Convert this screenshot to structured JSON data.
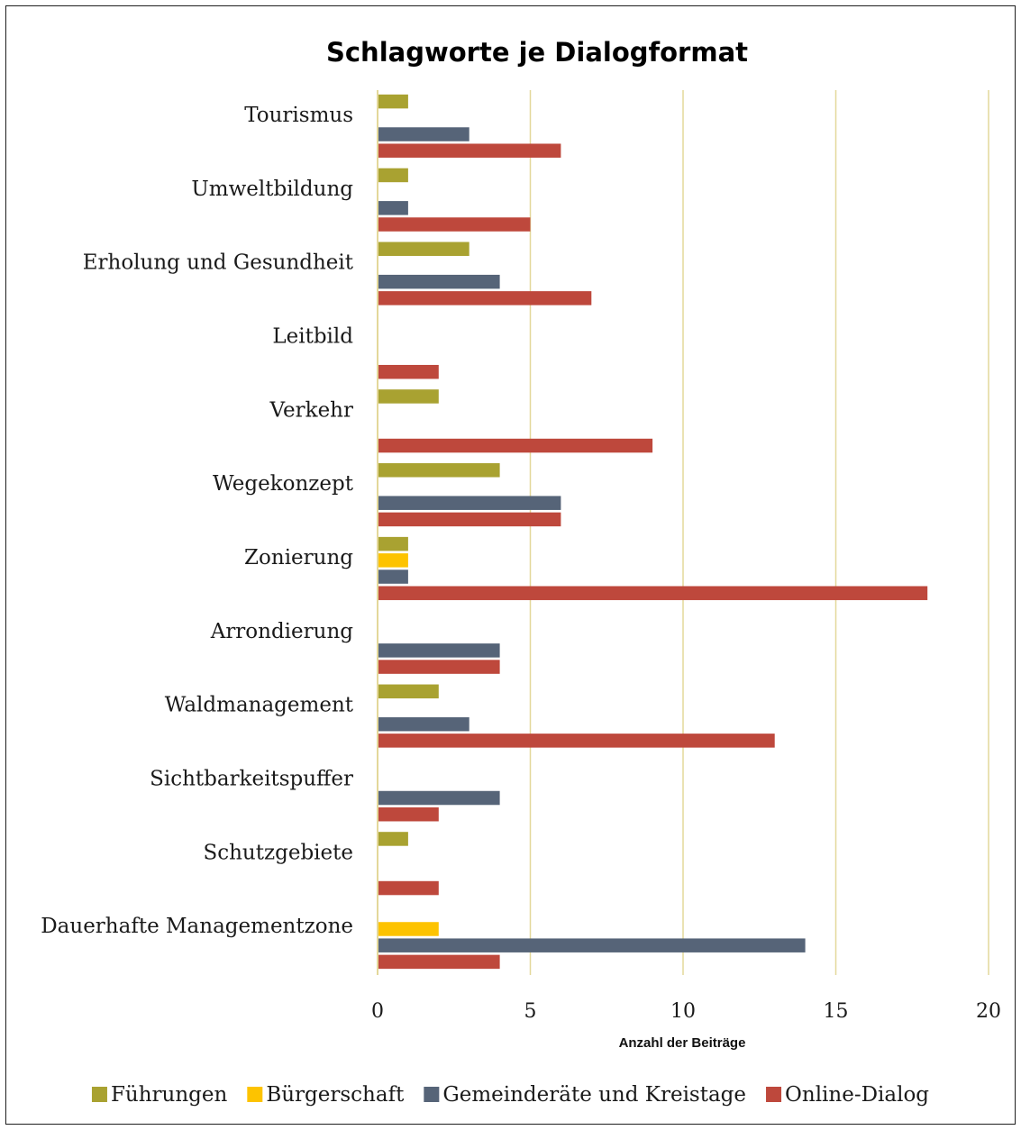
{
  "chart_data": {
    "type": "bar",
    "orientation": "horizontal",
    "title": "Schlagworte je Dialogformat",
    "xlabel": "Anzahl der Beiträge",
    "ylabel": "",
    "xlim": [
      0,
      20
    ],
    "xticks": [
      "0",
      "5",
      "10",
      "15",
      "20"
    ],
    "grid": "vertical",
    "legend_position": "bottom",
    "categories": [
      "Tourismus",
      "Umweltbildung",
      "Erholung und Gesundheit",
      "Leitbild",
      "Verkehr",
      "Wegekonzept",
      "Zonierung",
      "Arrondierung",
      "Waldmanagement",
      "Sichtbarkeitspuffer",
      "Schutzgebiete",
      "Dauerhafte Managementzone"
    ],
    "series": [
      {
        "name": "Führungen",
        "color": "#a9a231",
        "values": [
          1,
          1,
          3,
          0,
          2,
          4,
          1,
          0,
          2,
          0,
          1,
          0
        ]
      },
      {
        "name": "Bürgerschaft",
        "color": "#fdc300",
        "values": [
          0,
          0,
          0,
          0,
          0,
          0,
          1,
          0,
          0,
          0,
          0,
          2
        ]
      },
      {
        "name": "Gemeinderäte und Kreistage",
        "color": "#566478",
        "values": [
          3,
          1,
          4,
          0,
          0,
          6,
          1,
          4,
          3,
          4,
          0,
          14
        ]
      },
      {
        "name": "Online-Dialog",
        "color": "#be483c",
        "values": [
          6,
          5,
          7,
          2,
          9,
          6,
          18,
          4,
          13,
          2,
          2,
          4
        ]
      }
    ],
    "gridline_color": "#e3d89a"
  }
}
